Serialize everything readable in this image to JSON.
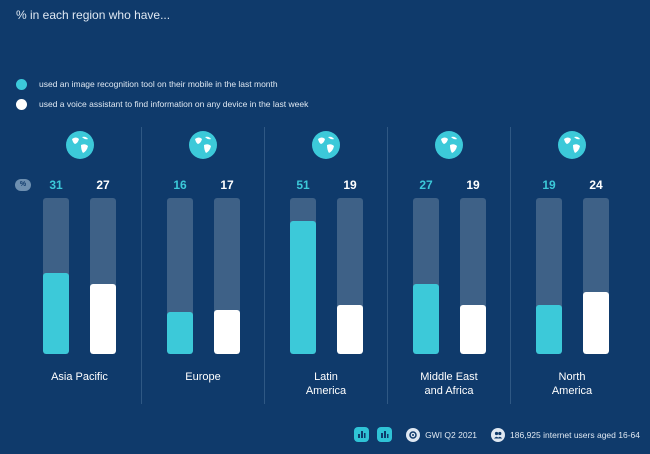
{
  "header": {
    "subtitle": "% in each region who have..."
  },
  "percent_badge": "%",
  "colors": {
    "background": "#0f3a6b",
    "series_1": "#3cc9d9",
    "series_2": "#ffffff",
    "track": "#3e6187"
  },
  "chart_data": {
    "type": "bar",
    "title": "",
    "subtitle": "% in each region who have...",
    "categories": [
      "Asia Pacific",
      "Europe",
      "Latin America",
      "Middle East and Africa",
      "North America"
    ],
    "category_lines": [
      [
        "Asia Pacific"
      ],
      [
        "Europe"
      ],
      [
        "Latin",
        "America"
      ],
      [
        "Middle East",
        "and Africa"
      ],
      [
        "North",
        "America"
      ]
    ],
    "series": [
      {
        "name": "used an image recognition tool on their mobile in the last month",
        "color": "#3cc9d9",
        "values": [
          31,
          16,
          51,
          27,
          19
        ]
      },
      {
        "name": "used a voice assistant to find information on any device in the last week",
        "color": "#ffffff",
        "values": [
          27,
          17,
          19,
          19,
          24
        ]
      }
    ],
    "ylim": [
      0,
      60
    ],
    "legend_position": "top-left",
    "grid": false
  },
  "footer": {
    "source": "GWI Q2 2021",
    "sample": "186,925 internet users aged 16-64"
  }
}
